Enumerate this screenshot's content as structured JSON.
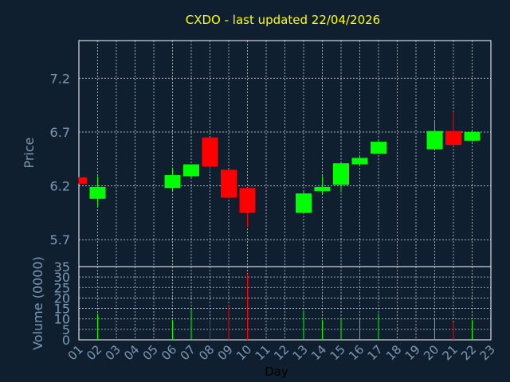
{
  "chart_data": [
    {
      "type": "candlestick",
      "title": "CXDO - last updated 22/04/2026",
      "ylabel": "Price",
      "ylim": [
        5.45,
        7.55
      ],
      "yticks": [
        5.7,
        6.2,
        6.7,
        7.2
      ],
      "ytick_labels": [
        "5.7",
        "6.2",
        "6.7",
        "7.2"
      ],
      "grid": true,
      "colors": {
        "up": "#00ff00",
        "down": "#ff0000",
        "background": "#0f1f30",
        "title": "#ffff00",
        "axis_text": "#7d99b3"
      },
      "candles": [
        {
          "day": "01",
          "open": 6.28,
          "high": 6.28,
          "low": 6.22,
          "close": 6.22
        },
        {
          "day": "02",
          "open": 6.08,
          "high": 6.29,
          "low": 6.01,
          "close": 6.19
        },
        {
          "day": "06",
          "open": 6.18,
          "high": 6.37,
          "low": 6.16,
          "close": 6.3
        },
        {
          "day": "07",
          "open": 6.29,
          "high": 6.4,
          "low": 6.27,
          "close": 6.4
        },
        {
          "day": "08",
          "open": 6.65,
          "high": 6.65,
          "low": 6.33,
          "close": 6.38
        },
        {
          "day": "09",
          "open": 6.35,
          "high": 6.35,
          "low": 6.08,
          "close": 6.09
        },
        {
          "day": "10",
          "open": 6.18,
          "high": 6.18,
          "low": 5.82,
          "close": 5.95
        },
        {
          "day": "13",
          "open": 5.95,
          "high": 6.16,
          "low": 5.95,
          "close": 6.13
        },
        {
          "day": "14",
          "open": 6.15,
          "high": 6.29,
          "low": 6.13,
          "close": 6.19
        },
        {
          "day": "15",
          "open": 6.21,
          "high": 6.41,
          "low": 6.14,
          "close": 6.41
        },
        {
          "day": "16",
          "open": 6.4,
          "high": 6.47,
          "low": 6.39,
          "close": 6.46
        },
        {
          "day": "17",
          "open": 6.5,
          "high": 6.62,
          "low": 6.5,
          "close": 6.61
        },
        {
          "day": "20",
          "open": 6.54,
          "high": 6.81,
          "low": 6.54,
          "close": 6.71
        },
        {
          "day": "21",
          "open": 6.71,
          "high": 6.89,
          "low": 6.57,
          "close": 6.58
        },
        {
          "day": "22",
          "open": 6.62,
          "high": 6.71,
          "low": 6.61,
          "close": 6.7
        }
      ]
    },
    {
      "type": "bar",
      "ylabel": "Volume (0000)",
      "xlabel": "Day",
      "ylim": [
        0,
        35
      ],
      "yticks": [
        0,
        5,
        10,
        15,
        20,
        25,
        30,
        35
      ],
      "ytick_labels": [
        "0",
        "5",
        "10",
        "15",
        "20",
        "25",
        "30",
        "35"
      ],
      "categories": [
        "01",
        "02",
        "03",
        "04",
        "05",
        "06",
        "07",
        "08",
        "09",
        "10",
        "11",
        "12",
        "13",
        "14",
        "15",
        "16",
        "17",
        "18",
        "19",
        "20",
        "21",
        "22",
        "23"
      ],
      "values": [
        0,
        12.5,
        0,
        0,
        0,
        9.5,
        15,
        9.5,
        16.5,
        31.5,
        0,
        0,
        14,
        9.5,
        10.5,
        10,
        12.5,
        0,
        0,
        10.5,
        8.5,
        9.5,
        0
      ],
      "bar_colors": [
        "none",
        "up",
        "none",
        "none",
        "none",
        "up",
        "up",
        "down",
        "down",
        "down",
        "none",
        "none",
        "up",
        "up",
        "up",
        "up",
        "up",
        "none",
        "none",
        "up",
        "down",
        "up",
        "none"
      ]
    }
  ]
}
